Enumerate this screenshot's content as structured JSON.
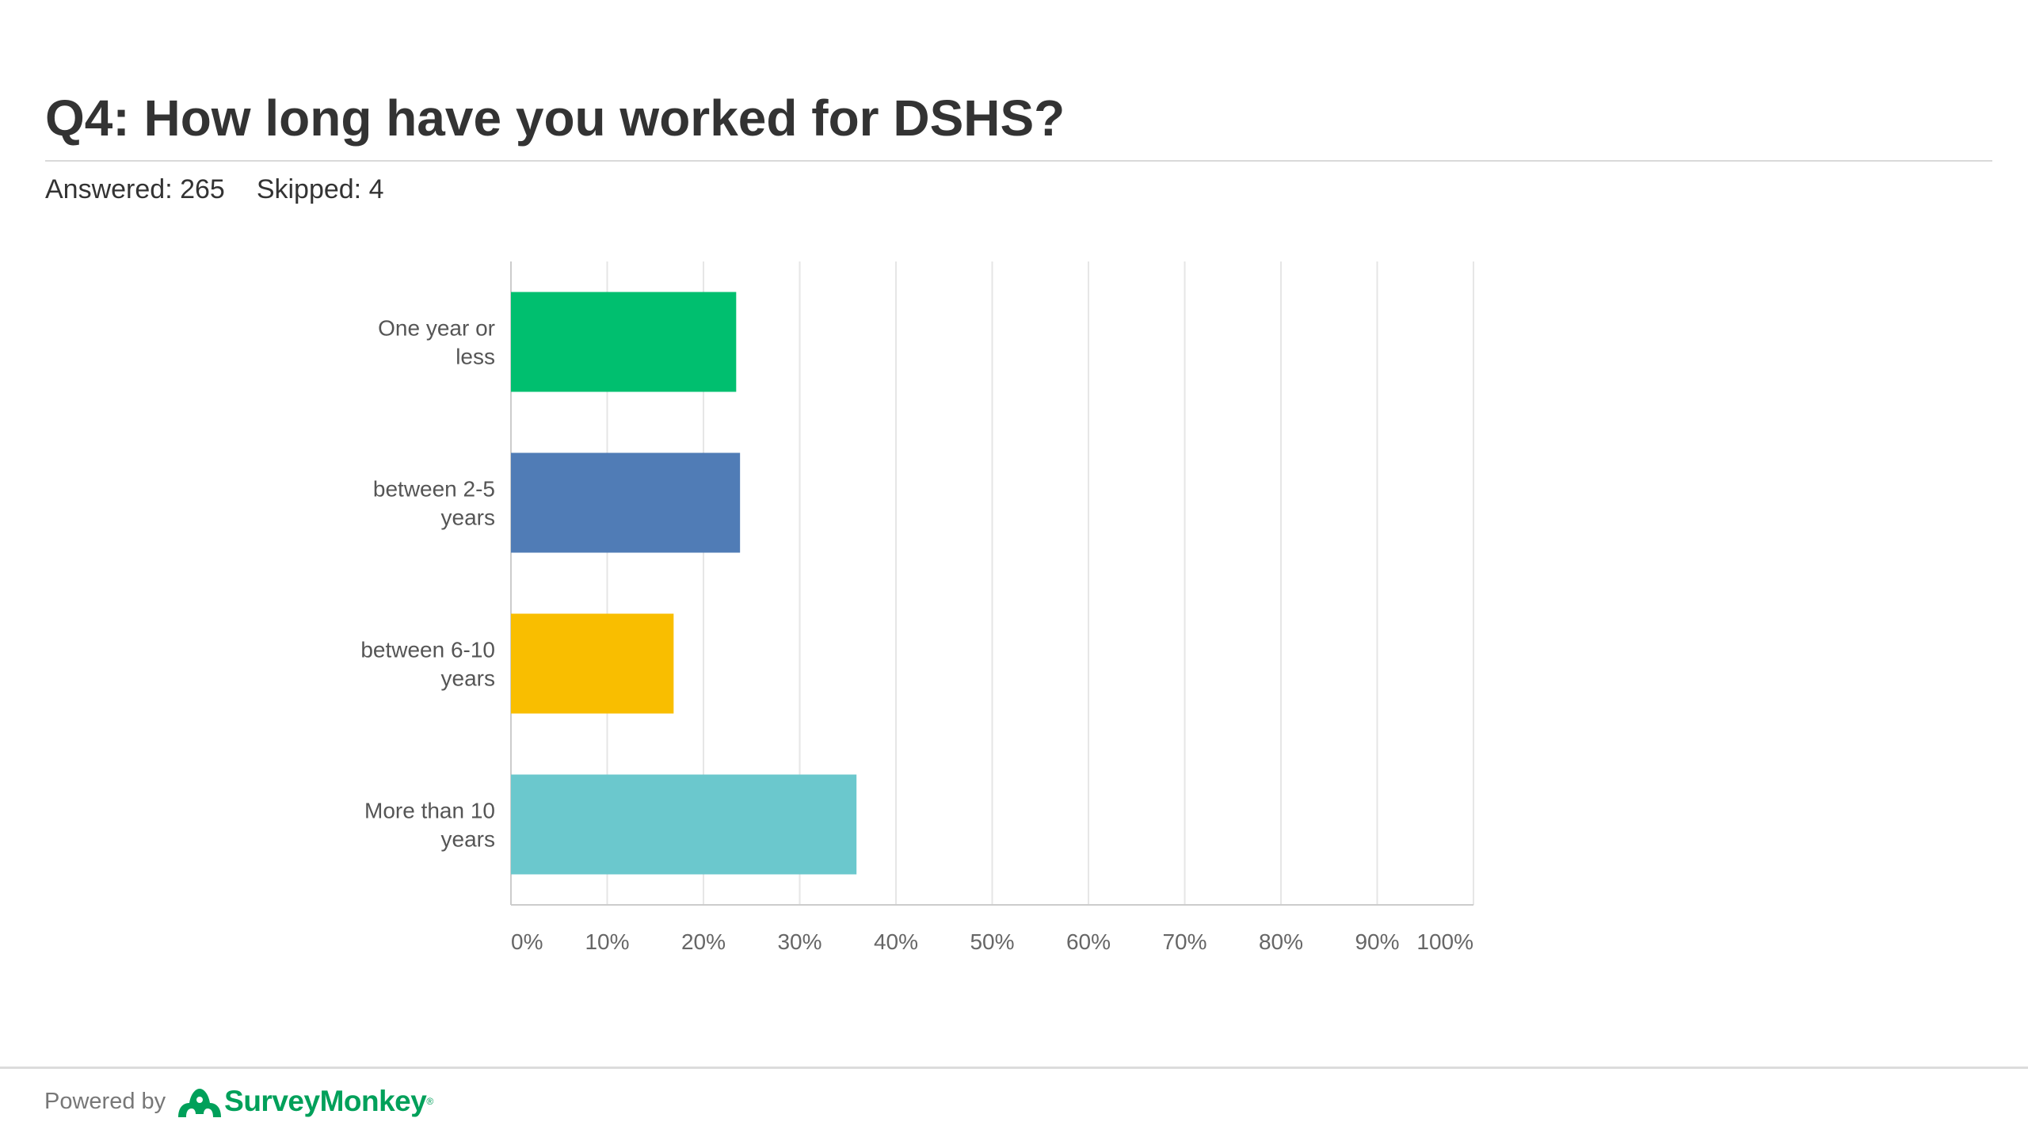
{
  "header": {
    "title": "Q4: How long have you worked for DSHS?",
    "answered": "Answered: 265",
    "skipped": "Skipped: 4"
  },
  "footer": {
    "powered_by": "Powered by",
    "brand": "SurveyMonkey",
    "brand_mark": "®",
    "logo_icon": "surveymonkey-logo-icon"
  },
  "chart_data": {
    "type": "bar",
    "orientation": "horizontal",
    "categories": [
      [
        "One year or",
        "less"
      ],
      [
        "between 2-5",
        "years"
      ],
      [
        "between 6-10",
        "years"
      ],
      [
        "More than 10",
        "years"
      ]
    ],
    "values": [
      23.4,
      23.8,
      16.9,
      35.9
    ],
    "unit": "%",
    "colors": [
      "#00bf6f",
      "#507cb6",
      "#f9be00",
      "#6bc8cd"
    ],
    "xlim": [
      0,
      100
    ],
    "ticks": [
      "0%",
      "10%",
      "20%",
      "30%",
      "40%",
      "50%",
      "60%",
      "70%",
      "80%",
      "90%",
      "100%"
    ],
    "grid": true,
    "grid_color": "#e6e6e6",
    "axis_color": "#cccccc",
    "legend": "none"
  }
}
